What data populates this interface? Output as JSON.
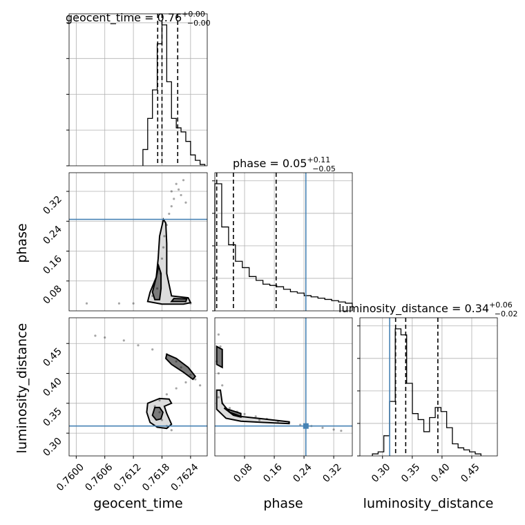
{
  "chart_data": {
    "type": "corner",
    "parameters": [
      {
        "name": "geocent_time",
        "range": [
          0.75985,
          0.76275
        ],
        "ticks": [
          "0.7600",
          "0.7606",
          "0.7612",
          "0.7618",
          "0.7624"
        ],
        "tick_values": [
          0.76,
          0.7606,
          0.7612,
          0.7618,
          0.7624
        ],
        "truth": null
      },
      {
        "name": "phase",
        "range": [
          0.0,
          0.37
        ],
        "ticks": [
          "0.08",
          "0.16",
          "0.24",
          "0.32"
        ],
        "tick_values": [
          0.08,
          0.16,
          0.24,
          0.32
        ],
        "truth": 0.245
      },
      {
        "name": "luminosity_distance",
        "range": [
          0.262,
          0.493
        ],
        "ticks": [
          "0.30",
          "0.35",
          "0.40",
          "0.45"
        ],
        "tick_values": [
          0.3,
          0.35,
          0.4,
          0.45
        ],
        "truth": 0.312
      }
    ],
    "titles": [
      {
        "param": "geocent_time",
        "text": "geocent_time = 0.76",
        "plus": "+0.00",
        "minus": "−0.00"
      },
      {
        "param": "phase",
        "text": "phase = 0.05",
        "plus": "+0.11",
        "minus": "−0.05"
      },
      {
        "param": "luminosity_distance",
        "text": "luminosity_distance = 0.34",
        "plus": "+0.06",
        "minus": "−0.02"
      }
    ],
    "quantiles": {
      "geocent_time": [
        0.76171,
        0.7618,
        0.76213
      ],
      "phase": [
        0.005,
        0.05,
        0.165
      ],
      "luminosity_distance": [
        0.322,
        0.339,
        0.393
      ]
    },
    "histograms": {
      "geocent_time": {
        "start": 0.7614,
        "step": 0.0001,
        "counts": [
          12,
          35,
          56,
          90,
          104,
          62,
          35,
          28,
          25,
          18,
          8,
          4,
          1
        ]
      },
      "phase": {
        "start": 0.0,
        "step": 0.0185,
        "counts": [
          100,
          66,
          52,
          39,
          34,
          27,
          24,
          21,
          20,
          19,
          17,
          15,
          14,
          12,
          11,
          10,
          9,
          8,
          7,
          6
        ]
      },
      "luminosity_distance": {
        "start": 0.283,
        "step": 0.0096,
        "counts": [
          1,
          2,
          10,
          27,
          63,
          60,
          36,
          21,
          18,
          12,
          19,
          24,
          22,
          14,
          6,
          4,
          3,
          2,
          1
        ]
      }
    },
    "scatter": {
      "phase_vs_geocent_time": [
        {
          "x": 0.76215,
          "y": 0.325
        },
        {
          "x": 0.76205,
          "y": 0.3
        },
        {
          "x": 0.762,
          "y": 0.28
        },
        {
          "x": 0.76195,
          "y": 0.26
        },
        {
          "x": 0.7621,
          "y": 0.34
        },
        {
          "x": 0.7619,
          "y": 0.23
        },
        {
          "x": 0.76185,
          "y": 0.2
        },
        {
          "x": 0.76183,
          "y": 0.17
        },
        {
          "x": 0.7618,
          "y": 0.14
        },
        {
          "x": 0.76177,
          "y": 0.1
        },
        {
          "x": 0.7617,
          "y": 0.06
        },
        {
          "x": 0.7616,
          "y": 0.04
        },
        {
          "x": 0.7612,
          "y": 0.02
        },
        {
          "x": 0.7609,
          "y": 0.02
        },
        {
          "x": 0.7624,
          "y": 0.02
        },
        {
          "x": 0.7622,
          "y": 0.31
        },
        {
          "x": 0.76225,
          "y": 0.35
        },
        {
          "x": 0.762,
          "y": 0.32
        },
        {
          "x": 0.7623,
          "y": 0.29
        },
        {
          "x": 0.76022,
          "y": 0.02
        }
      ],
      "luminosity_distance_vs_geocent_time": [
        {
          "x": 0.761,
          "y": 0.455
        },
        {
          "x": 0.7613,
          "y": 0.447
        },
        {
          "x": 0.7616,
          "y": 0.44
        },
        {
          "x": 0.7619,
          "y": 0.432
        },
        {
          "x": 0.7621,
          "y": 0.42
        },
        {
          "x": 0.7622,
          "y": 0.41
        },
        {
          "x": 0.7624,
          "y": 0.398
        },
        {
          "x": 0.7625,
          "y": 0.39
        },
        {
          "x": 0.7623,
          "y": 0.385
        },
        {
          "x": 0.7621,
          "y": 0.375
        },
        {
          "x": 0.7619,
          "y": 0.365
        },
        {
          "x": 0.76175,
          "y": 0.355
        },
        {
          "x": 0.76165,
          "y": 0.345
        },
        {
          "x": 0.76175,
          "y": 0.335
        },
        {
          "x": 0.7618,
          "y": 0.322
        },
        {
          "x": 0.7619,
          "y": 0.312
        },
        {
          "x": 0.762,
          "y": 0.305
        },
        {
          "x": 0.7606,
          "y": 0.46
        },
        {
          "x": 0.7604,
          "y": 0.463
        },
        {
          "x": 0.7626,
          "y": 0.38
        }
      ],
      "luminosity_distance_vs_phase": [
        {
          "x": 0.005,
          "y": 0.42
        },
        {
          "x": 0.01,
          "y": 0.4
        },
        {
          "x": 0.02,
          "y": 0.38
        },
        {
          "x": 0.01,
          "y": 0.36
        },
        {
          "x": 0.02,
          "y": 0.35
        },
        {
          "x": 0.04,
          "y": 0.342
        },
        {
          "x": 0.06,
          "y": 0.336
        },
        {
          "x": 0.08,
          "y": 0.332
        },
        {
          "x": 0.11,
          "y": 0.328
        },
        {
          "x": 0.14,
          "y": 0.324
        },
        {
          "x": 0.17,
          "y": 0.32
        },
        {
          "x": 0.2,
          "y": 0.318
        },
        {
          "x": 0.23,
          "y": 0.314
        },
        {
          "x": 0.26,
          "y": 0.312
        },
        {
          "x": 0.29,
          "y": 0.309
        },
        {
          "x": 0.32,
          "y": 0.306
        },
        {
          "x": 0.34,
          "y": 0.304
        },
        {
          "x": 0.015,
          "y": 0.445
        },
        {
          "x": 0.01,
          "y": 0.465
        },
        {
          "x": 0.12,
          "y": 0.322
        }
      ]
    },
    "contours": {
      "phase_vs_geocent_time": [
        [
          [
            0.76183,
            0.245
          ],
          [
            0.76175,
            0.2
          ],
          [
            0.76172,
            0.14
          ],
          [
            0.76168,
            0.09
          ],
          [
            0.76155,
            0.05
          ],
          [
            0.7615,
            0.025
          ],
          [
            0.7618,
            0.018
          ],
          [
            0.76225,
            0.018
          ],
          [
            0.7624,
            0.022
          ],
          [
            0.76235,
            0.035
          ],
          [
            0.762,
            0.04
          ],
          [
            0.7619,
            0.1
          ],
          [
            0.7619,
            0.18
          ],
          [
            0.76188,
            0.235
          ]
        ],
        [
          [
            0.76168,
            0.09
          ],
          [
            0.7616,
            0.05
          ],
          [
            0.76165,
            0.03
          ],
          [
            0.76175,
            0.03
          ],
          [
            0.76178,
            0.06
          ],
          [
            0.76178,
            0.1
          ],
          [
            0.76173,
            0.12
          ]
        ],
        [
          [
            0.762,
            0.025
          ],
          [
            0.7623,
            0.025
          ],
          [
            0.76232,
            0.032
          ],
          [
            0.76205,
            0.033
          ]
        ]
      ],
      "luminosity_distance_vs_geocent_time": [
        [
          [
            0.7615,
            0.35
          ],
          [
            0.76175,
            0.358
          ],
          [
            0.76195,
            0.357
          ],
          [
            0.762,
            0.35
          ],
          [
            0.76185,
            0.345
          ],
          [
            0.7619,
            0.333
          ],
          [
            0.762,
            0.315
          ],
          [
            0.7619,
            0.308
          ],
          [
            0.7617,
            0.31
          ],
          [
            0.76155,
            0.318
          ],
          [
            0.76148,
            0.335
          ]
        ],
        [
          [
            0.76165,
            0.343
          ],
          [
            0.76175,
            0.343
          ],
          [
            0.76182,
            0.335
          ],
          [
            0.76178,
            0.324
          ],
          [
            0.76168,
            0.322
          ],
          [
            0.7616,
            0.33
          ]
        ],
        [
          [
            0.7619,
            0.432
          ],
          [
            0.7621,
            0.425
          ],
          [
            0.76235,
            0.41
          ],
          [
            0.7625,
            0.395
          ],
          [
            0.76245,
            0.39
          ],
          [
            0.76225,
            0.402
          ],
          [
            0.762,
            0.415
          ],
          [
            0.76188,
            0.425
          ]
        ]
      ],
      "luminosity_distance_vs_phase": [
        [
          [
            0.005,
            0.372
          ],
          [
            0.005,
            0.34
          ],
          [
            0.03,
            0.325
          ],
          [
            0.07,
            0.32
          ],
          [
            0.13,
            0.318
          ],
          [
            0.2,
            0.316
          ],
          [
            0.2,
            0.319
          ],
          [
            0.13,
            0.324
          ],
          [
            0.07,
            0.328
          ],
          [
            0.04,
            0.335
          ],
          [
            0.02,
            0.35
          ],
          [
            0.015,
            0.372
          ]
        ],
        [
          [
            0.025,
            0.342
          ],
          [
            0.05,
            0.33
          ],
          [
            0.07,
            0.327
          ],
          [
            0.07,
            0.333
          ],
          [
            0.045,
            0.338
          ]
        ],
        [
          [
            0.005,
            0.445
          ],
          [
            0.005,
            0.415
          ],
          [
            0.02,
            0.41
          ],
          [
            0.02,
            0.44
          ]
        ]
      ]
    }
  }
}
